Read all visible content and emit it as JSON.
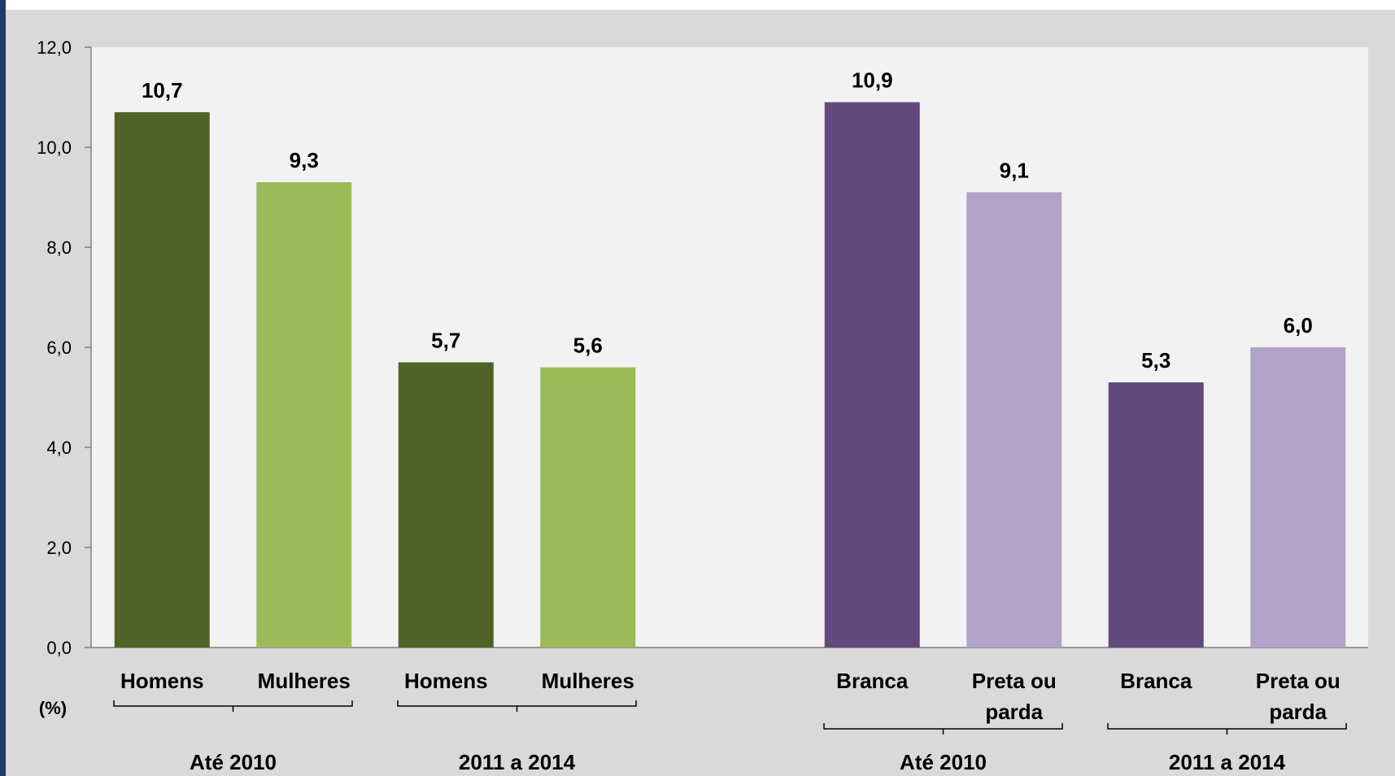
{
  "chart_data": {
    "type": "bar",
    "unit_label": "(%)",
    "ylim": [
      0,
      12
    ],
    "y_ticks": [
      "0,0",
      "2,0",
      "4,0",
      "6,0",
      "8,0",
      "10,0",
      "12,0"
    ],
    "colors": {
      "green_dark": "#4f6228",
      "green_light": "#9bbb59",
      "purple_dark": "#604a7b",
      "purple_light": "#b3a2c7",
      "plot_bg": "#f2f2f2",
      "page_bg": "#d9d9d9"
    },
    "panels": [
      {
        "groups": [
          {
            "label": "Até 2010",
            "bars": [
              {
                "category": "Homens",
                "value": 10.7,
                "label": "10,7",
                "color": "#4f6228"
              },
              {
                "category": "Mulheres",
                "value": 9.3,
                "label": "9,3",
                "color": "#9bbb59"
              }
            ]
          },
          {
            "label": "2011 a 2014",
            "bars": [
              {
                "category": "Homens",
                "value": 5.7,
                "label": "5,7",
                "color": "#4f6228"
              },
              {
                "category": "Mulheres",
                "value": 5.6,
                "label": "5,6",
                "color": "#9bbb59"
              }
            ]
          }
        ]
      },
      {
        "groups": [
          {
            "label": "Até 2010",
            "bars": [
              {
                "category": "Branca",
                "value": 10.9,
                "label": "10,9",
                "color": "#604a7b"
              },
              {
                "category": "Preta ou parda",
                "value": 9.1,
                "label": "9,1",
                "color": "#b3a2c7"
              }
            ]
          },
          {
            "label": "2011 a 2014",
            "bars": [
              {
                "category": "Branca",
                "value": 5.3,
                "label": "5,3",
                "color": "#604a7b"
              },
              {
                "category": "Preta ou parda",
                "value": 6.0,
                "label": "6,0",
                "color": "#b3a2c7"
              }
            ]
          }
        ]
      }
    ]
  }
}
